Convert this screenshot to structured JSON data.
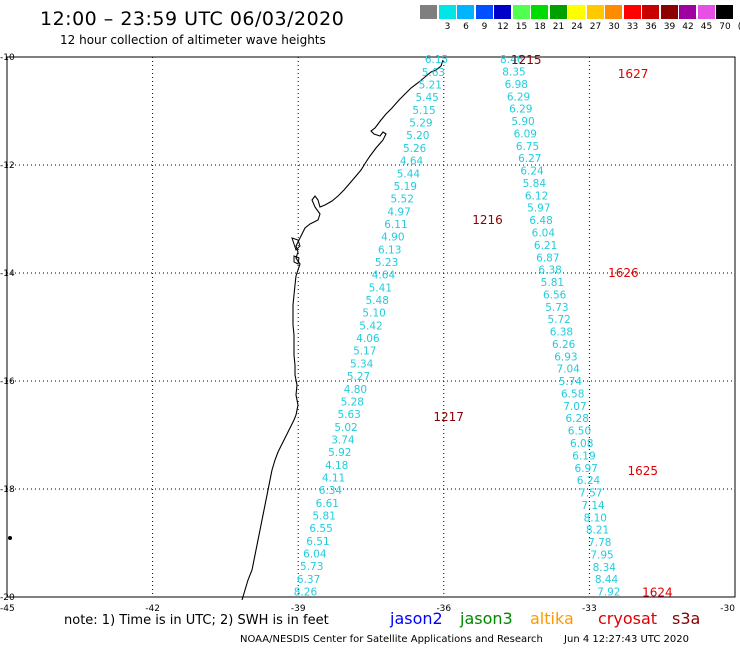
{
  "header": {
    "title": "12:00 – 23:59 UTC 06/03/2020",
    "subtitle": "12 hour collection of altimeter wave heights"
  },
  "color_scale": {
    "unit_label": "(ft)",
    "bins": [
      {
        "label": "",
        "color": "#7f7f7f"
      },
      {
        "label": "3",
        "color": "#00e5e5"
      },
      {
        "label": "6",
        "color": "#00b4ff"
      },
      {
        "label": "9",
        "color": "#0050ff"
      },
      {
        "label": "12",
        "color": "#0000c8"
      },
      {
        "label": "15",
        "color": "#50ff50"
      },
      {
        "label": "18",
        "color": "#00dc00"
      },
      {
        "label": "21",
        "color": "#00a000"
      },
      {
        "label": "24",
        "color": "#ffff00"
      },
      {
        "label": "27",
        "color": "#ffc800"
      },
      {
        "label": "30",
        "color": "#ff8c00"
      },
      {
        "label": "33",
        "color": "#ff0000"
      },
      {
        "label": "36",
        "color": "#c80000"
      },
      {
        "label": "39",
        "color": "#8c0000"
      },
      {
        "label": "42",
        "color": "#a000a0"
      },
      {
        "label": "45",
        "color": "#e650e6"
      },
      {
        "label": "70",
        "color": "#000000"
      }
    ]
  },
  "map": {
    "lat_range": [
      -20,
      -10
    ],
    "lon_range": [
      -45,
      -30
    ],
    "lat_ticks": [
      "-10",
      "-12",
      "-14",
      "-16",
      "-18",
      "-20"
    ],
    "lon_ticks": [
      "-45",
      "-42",
      "-39",
      "-36",
      "-33",
      "-30"
    ],
    "tracks": [
      {
        "satellite": "jason3-west",
        "color": "#22ccdd",
        "start": [
          -36.15,
          -10.04
        ],
        "end": [
          -38.85,
          -19.9
        ],
        "values": [
          "6.15",
          "5.63",
          "5.21",
          "5.45",
          "5.15",
          "5.29",
          "5.20",
          "5.26",
          "4.64",
          "5.44",
          "5.19",
          "5.52",
          "4.97",
          "6.11",
          "4.90",
          "6.13",
          "5.23",
          "4.64",
          "5.41",
          "5.48",
          "5.10",
          "5.42",
          "4.06",
          "5.17",
          "5.34",
          "5.27",
          "4.80",
          "5.28",
          "5.63",
          "5.02",
          "3.74",
          "5.92",
          "4.18",
          "4.11",
          "6.34",
          "6.61",
          "5.81",
          "6.55",
          "6.51",
          "6.04",
          "5.73",
          "6.37",
          "8.26"
        ]
      },
      {
        "satellite": "jason3-east",
        "color": "#22ccdd",
        "start": [
          -34.6,
          -10.04
        ],
        "end": [
          -32.6,
          -19.9
        ],
        "values": [
          "8.46",
          "8.35",
          "6.98",
          "6.29",
          "6.29",
          "5.90",
          "6.09",
          "6.75",
          "6.27",
          "6.24",
          "5.84",
          "6.12",
          "5.97",
          "6.48",
          "6.04",
          "6.21",
          "6.87",
          "6.38",
          "5.81",
          "6.56",
          "5.73",
          "5.72",
          "6.38",
          "6.26",
          "6.93",
          "7.04",
          "5.74",
          "6.58",
          "7.07",
          "6.28",
          "6.50",
          "6.08",
          "6.19",
          "6.97",
          "6.24",
          "7.57",
          "7.14",
          "8.10",
          "8.21",
          "7.78",
          "7.95",
          "8.34",
          "8.44",
          "7.92"
        ]
      }
    ],
    "time_labels": [
      {
        "text": "1215",
        "lon": -34.3,
        "lat": -10.04,
        "color": "#8b0000"
      },
      {
        "text": "1216",
        "lon": -35.1,
        "lat": -13.0,
        "color": "#8b0000"
      },
      {
        "text": "1217",
        "lon": -35.9,
        "lat": -16.65,
        "color": "#8b0000"
      },
      {
        "text": "1627",
        "lon": -32.1,
        "lat": -10.3,
        "color": "#e00000"
      },
      {
        "text": "1626",
        "lon": -32.3,
        "lat": -13.98,
        "color": "#e00000"
      },
      {
        "text": "1625",
        "lon": -31.9,
        "lat": -17.65,
        "color": "#e00000"
      },
      {
        "text": "1624",
        "lon": -31.6,
        "lat": -19.9,
        "color": "#e00000"
      }
    ]
  },
  "footer": {
    "note": "note: 1) Time is in UTC; 2) SWH is in feet",
    "legend": [
      {
        "name": "jason2",
        "color": "#0000ff"
      },
      {
        "name": "jason3",
        "color": "#008800"
      },
      {
        "name": "altika",
        "color": "#ff9900"
      },
      {
        "name": "cryosat",
        "color": "#dd0000"
      },
      {
        "name": "s3a",
        "color": "#880000"
      }
    ],
    "credit": "NOAA/NESDIS Center for Satellite Applications and Research",
    "timestamp": "Jun  4 12:27:43 UTC 2020"
  }
}
